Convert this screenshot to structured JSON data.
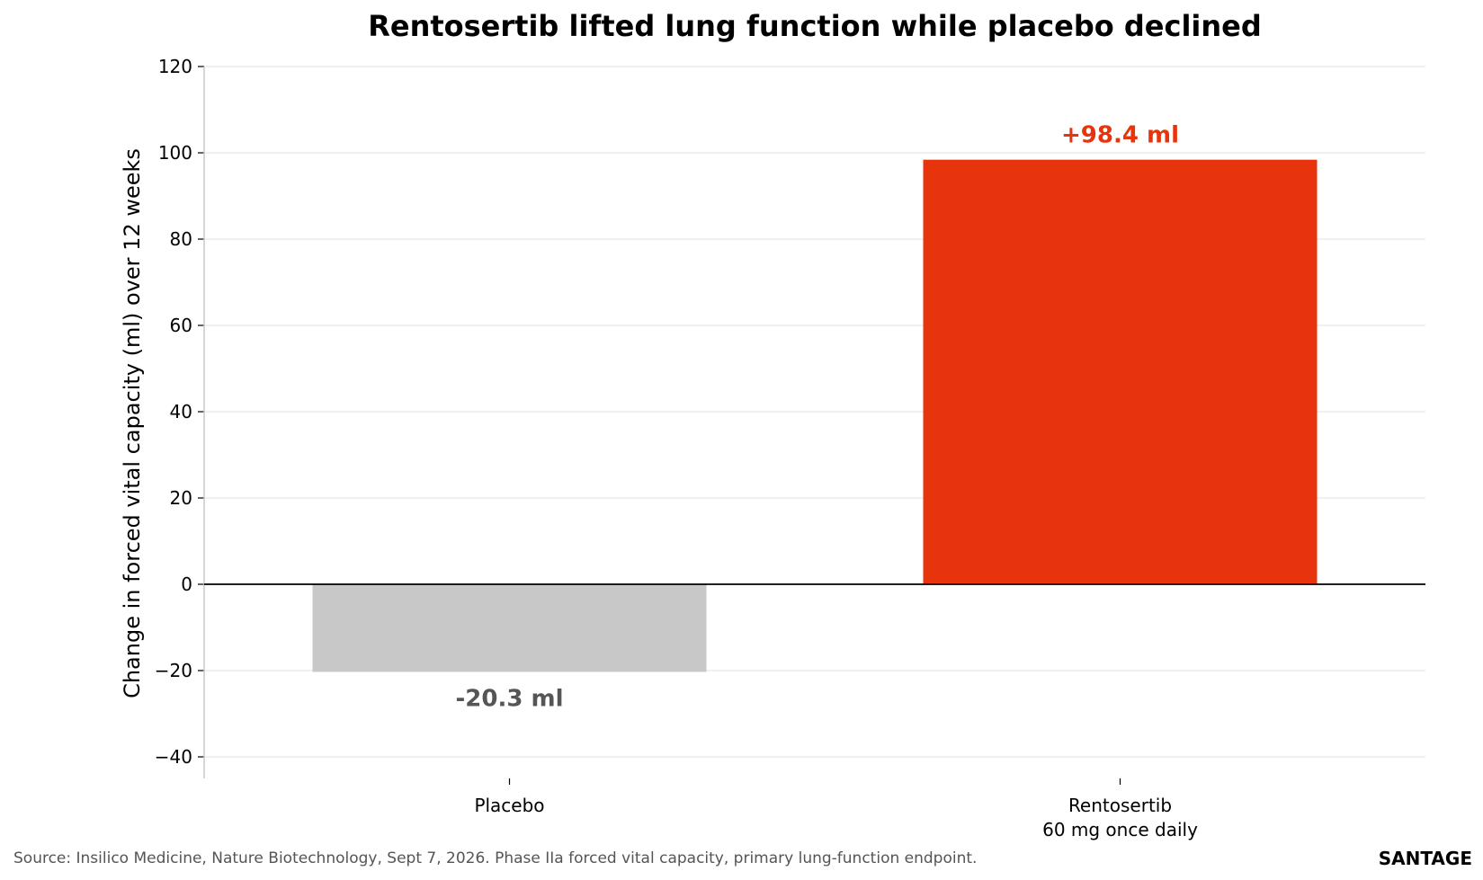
{
  "chart_data": {
    "type": "bar",
    "title": "Rentosertib lifted lung function while placebo declined",
    "xlabel": "",
    "ylabel": "Change in forced vital capacity (ml) over 12 weeks",
    "categories": [
      [
        "Placebo"
      ],
      [
        "Rentosertib",
        "60 mg once daily"
      ]
    ],
    "values": [
      -20.3,
      98.4
    ],
    "data_labels": [
      "-20.3 ml",
      "+98.4 ml"
    ],
    "bar_colors": [
      "#c8c8c8",
      "#e8340c"
    ],
    "label_colors": [
      "#555555",
      "#e8340c"
    ],
    "ylim": [
      -45,
      120
    ],
    "yticks": [
      -40,
      -20,
      0,
      20,
      40,
      60,
      80,
      100,
      120
    ],
    "ytick_labels": [
      "−40",
      "−20",
      "0",
      "20",
      "40",
      "60",
      "80",
      "100",
      "120"
    ],
    "grid": true,
    "legend": "none"
  },
  "source": "Source: Insilico Medicine, Nature Biotechnology, Sept 7, 2026. Phase IIa forced vital capacity, primary lung-function endpoint.",
  "brand": "SANTAGE"
}
